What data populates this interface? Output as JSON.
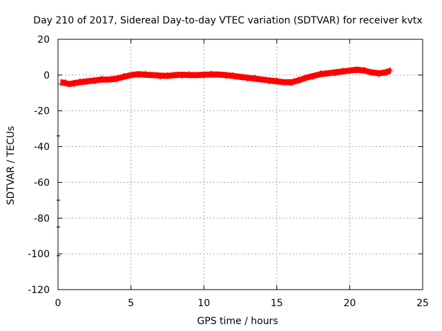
{
  "chart_data": {
    "type": "scatter",
    "title": "Day 210 of 2017, Sidereal Day-to-day VTEC variation (SDTVAR) for receiver kvtx",
    "xlabel": "GPS time / hours",
    "ylabel": "SDTVAR / TECUs",
    "xlim": [
      0,
      25
    ],
    "ylim": [
      -120,
      20
    ],
    "xticks": [
      0,
      5,
      10,
      15,
      20,
      25
    ],
    "xtick_labels": [
      "0",
      "5",
      "10",
      "15",
      "20",
      "25"
    ],
    "yticks": [
      20,
      0,
      -20,
      -40,
      -60,
      -80,
      -100,
      -120
    ],
    "ytick_labels": [
      "20",
      "0",
      "-20",
      "-40",
      "-60",
      "-80",
      "-100",
      "-120"
    ],
    "grid": true,
    "series": [
      {
        "name": "SDTVAR",
        "color": "#ff0000",
        "band_halfwidth": 1.4,
        "x": [
          0.2,
          0.5,
          0.8,
          1.1,
          1.5,
          2.0,
          2.5,
          3.0,
          3.5,
          4.0,
          4.5,
          5.0,
          5.5,
          6.0,
          6.5,
          7.0,
          7.5,
          8.0,
          8.5,
          9.0,
          9.5,
          10.0,
          10.5,
          11.0,
          11.5,
          12.0,
          12.5,
          13.0,
          13.5,
          14.0,
          14.5,
          15.0,
          15.5,
          16.0,
          16.5,
          17.0,
          17.5,
          18.0,
          18.5,
          19.0,
          19.5,
          20.0,
          20.5,
          21.0,
          21.5,
          22.0,
          22.5,
          22.8
        ],
        "y": [
          -4,
          -4.5,
          -5,
          -4.5,
          -4,
          -3.5,
          -3,
          -2.5,
          -2.5,
          -2,
          -1,
          0,
          0.5,
          0.2,
          0,
          -0.3,
          -0.5,
          0,
          0.2,
          0,
          0,
          0.2,
          0.3,
          0.3,
          0,
          -0.5,
          -1,
          -1.5,
          -2,
          -2.5,
          -3,
          -3.5,
          -4,
          -4,
          -3,
          -1.5,
          -0.5,
          0.5,
          1,
          1.5,
          2,
          2.5,
          3,
          2.5,
          1.5,
          1,
          1.5,
          2.5
        ]
      }
    ],
    "outliers": {
      "x": [
        0,
        0,
        0,
        0
      ],
      "y": [
        -34,
        -70,
        -85,
        -101
      ]
    }
  }
}
